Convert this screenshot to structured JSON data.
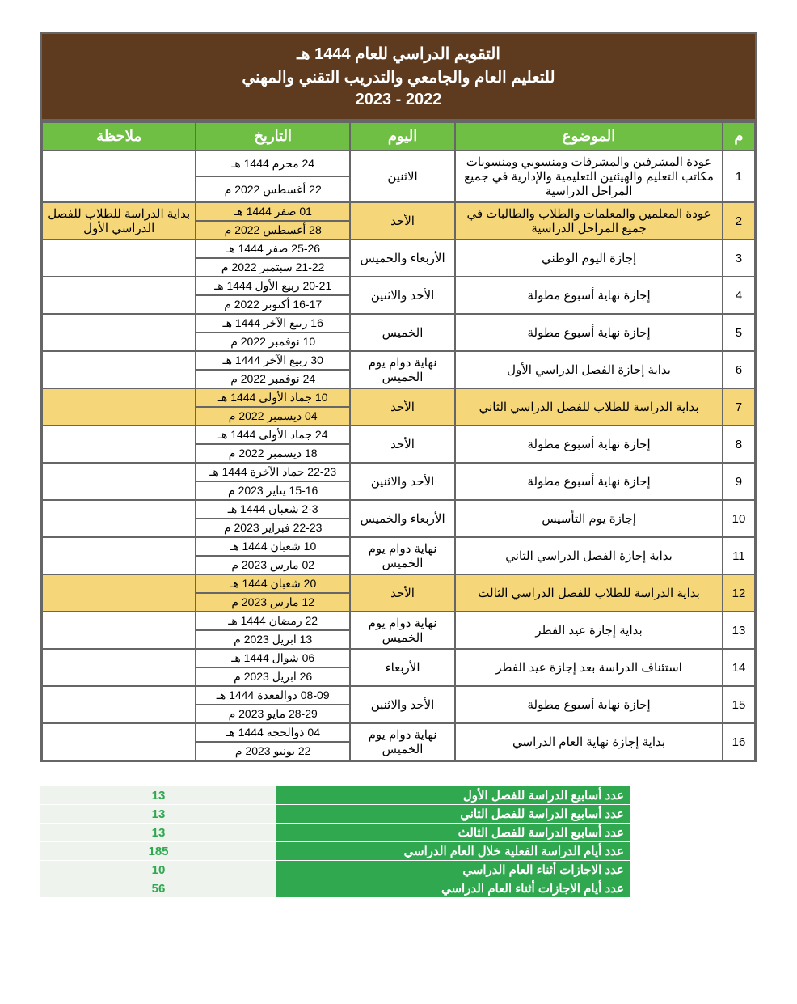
{
  "title": {
    "line1": "التقويم الدراسي للعام 1444 هـ",
    "line2": "للتعليم العام والجامعي والتدريب التقني والمهني",
    "line3": "2022 - 2023"
  },
  "columns": {
    "num": "م",
    "subject": "الموضوع",
    "day": "اليوم",
    "date": "التاريخ",
    "note": "ملاحظة"
  },
  "rows": [
    {
      "n": "1",
      "subject": "عودة المشرفين والمشرفات ومنسوبي ومنسوبات مكاتب التعليم والهيئتين التعليمية والإدارية في جميع المراحل الدراسية",
      "day": "الاثنين",
      "date_h": "24 محرم 1444 هـ",
      "date_g": "22 أغسطس 2022 م",
      "note": "",
      "hl": false
    },
    {
      "n": "2",
      "subject": "عودة المعلمين والمعلمات والطلاب والطالبات في جميع المراحل الدراسية",
      "day": "الأحد",
      "date_h": "01 صفر 1444 هـ",
      "date_g": "28 أغسطس 2022 م",
      "note": "بداية الدراسة للطلاب للفصل الدراسي الأول",
      "hl": true
    },
    {
      "n": "3",
      "subject": "إجازة اليوم الوطني",
      "day": "الأربعاء والخميس",
      "date_h": "25-26 صفر 1444 هـ",
      "date_g": "21-22 سبتمبر 2022 م",
      "note": "",
      "hl": false
    },
    {
      "n": "4",
      "subject": "إجازة نهاية أسبوع مطولة",
      "day": "الأحد والاثنين",
      "date_h": "20-21 ربيع الأول 1444 هـ",
      "date_g": "16-17 أكتوبر 2022 م",
      "note": "",
      "hl": false
    },
    {
      "n": "5",
      "subject": "إجازة نهاية أسبوع مطولة",
      "day": "الخميس",
      "date_h": "16 ربيع الآخر 1444 هـ",
      "date_g": "10 نوفمبر 2022 م",
      "note": "",
      "hl": false
    },
    {
      "n": "6",
      "subject": "بداية إجازة الفصل الدراسي الأول",
      "day": "نهاية دوام يوم الخميس",
      "date_h": "30 ربيع الآخر 1444 هـ",
      "date_g": "24 نوفمبر 2022 م",
      "note": "",
      "hl": false
    },
    {
      "n": "7",
      "subject": "بداية الدراسة للطلاب للفصل الدراسي الثاني",
      "day": "الأحد",
      "date_h": "10 جماد الأولى 1444 هـ",
      "date_g": "04 ديسمبر  2022 م",
      "note": "",
      "hl": true
    },
    {
      "n": "8",
      "subject": "إجازة نهاية أسبوع مطولة",
      "day": "الأحد",
      "date_h": "24 جماد الأولى 1444 هـ",
      "date_g": "18 ديسمبر 2022 م",
      "note": "",
      "hl": false
    },
    {
      "n": "9",
      "subject": "إجازة نهاية أسبوع مطولة",
      "day": "الأحد والاثنين",
      "date_h": "22-23 جماد الآخرة 1444 هـ",
      "date_g": "15-16 يناير 2023 م",
      "note": "",
      "hl": false
    },
    {
      "n": "10",
      "subject": "إجازة يوم التأسيس",
      "day": "الأربعاء والخميس",
      "date_h": "2-3 شعبان 1444 هـ",
      "date_g": "22-23 فبراير 2023 م",
      "note": "",
      "hl": false
    },
    {
      "n": "11",
      "subject": "بداية إجازة الفصل الدراسي الثاني",
      "day": "نهاية دوام يوم الخميس",
      "date_h": "10 شعبان 1444 هـ",
      "date_g": "02 مارس 2023 م",
      "note": "",
      "hl": false
    },
    {
      "n": "12",
      "subject": "بداية الدراسة للطلاب للفصل الدراسي الثالث",
      "day": "الأحد",
      "date_h": "20 شعبان 1444 هـ",
      "date_g": "12 مارس 2023 م",
      "note": "",
      "hl": true
    },
    {
      "n": "13",
      "subject": "بداية إجازة عيد الفطر",
      "day": "نهاية دوام يوم الخميس",
      "date_h": "22 رمضان 1444 هـ",
      "date_g": "13 ابريل 2023 م",
      "note": "",
      "hl": false
    },
    {
      "n": "14",
      "subject": "استئناف الدراسة بعد إجازة عيد الفطر",
      "day": "الأربعاء",
      "date_h": "06 شوال 1444 هـ",
      "date_g": "26 ابريل 2023 م",
      "note": "",
      "hl": false
    },
    {
      "n": "15",
      "subject": "إجازة نهاية أسبوع مطولة",
      "day": "الأحد والاثنين",
      "date_h": "08-09 ذوالقعدة 1444 هـ",
      "date_g": "28-29 مايو 2023 م",
      "note": "",
      "hl": false
    },
    {
      "n": "16",
      "subject": "بداية إجازة نهاية العام الدراسي",
      "day": "نهاية دوام يوم الخميس",
      "date_h": "04 ذوالحجة 1444 هـ",
      "date_g": "22 يونيو  2023 م",
      "note": "",
      "hl": false
    }
  ],
  "summary": [
    {
      "label": "عدد أسابيع الدراسة للفصل الأول",
      "value": "13"
    },
    {
      "label": "عدد أسابيع الدراسة للفصل الثاني",
      "value": "13"
    },
    {
      "label": "عدد أسابيع الدراسة للفصل الثالث",
      "value": "13"
    },
    {
      "label": "عدد أيام الدراسة الفعلية خلال العام الدراسي",
      "value": "185"
    },
    {
      "label": "عدد الاجازات أثناء العام الدراسي",
      "value": "10"
    },
    {
      "label": "عدد أيام الاجازات أثناء العام الدراسي",
      "value": "56"
    }
  ],
  "colors": {
    "title_bg": "#5e3a1e",
    "header_bg": "#6fbf44",
    "highlight_bg": "#f5d77a",
    "summary_label_bg": "#2fa84f",
    "summary_value_bg": "#eef3ee",
    "summary_value_color": "#2fa84f",
    "border": "#666666"
  }
}
